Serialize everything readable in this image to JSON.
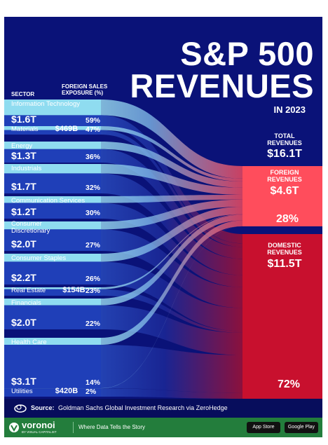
{
  "title_line1": "S&P 500",
  "title_line2": "REVENUES",
  "subtitle": "IN 2023",
  "header_sector": "SECTOR",
  "header_foreign_line1": "FOREIGN SALES",
  "header_foreign_line2": "EXPOSURE (%)",
  "total_label_line1": "TOTAL",
  "total_label_line2": "REVENUES",
  "total_value": "$16.1T",
  "foreign_label_line1": "FOREIGN",
  "foreign_label_line2": "REVENUES",
  "foreign_value": "$4.6T",
  "foreign_pct": "28%",
  "domestic_label_line1": "DOMESTIC",
  "domestic_label_line2": "REVENUES",
  "domestic_value": "$11.5T",
  "domestic_pct": "72%",
  "source_label": "Source:",
  "source_text": "Goldman Sachs Global Investment Research via ZeroHedge",
  "brand_name": "voronoi",
  "brand_sub": "BY VISUAL CAPITALIST",
  "tagline": "Where Data Tells the Story",
  "app_store": "App Store",
  "google_play": "Google Play",
  "colors": {
    "background": "#0a1278",
    "foreign": "#ff4d5c",
    "domestic": "#c8102e",
    "footer": "#237d3c"
  },
  "chart_data": {
    "type": "sankey",
    "title": "S&P 500 Revenues in 2023",
    "units": "USD trillions",
    "sectors": [
      {
        "name": "Information Technology",
        "revenue_label": "$1.6T",
        "revenue": 1.6,
        "foreign_pct_label": "59%",
        "foreign_pct": 59
      },
      {
        "name": "Materials",
        "revenue_label": "$469B",
        "revenue": 0.469,
        "foreign_pct_label": "47%",
        "foreign_pct": 47
      },
      {
        "name": "Energy",
        "revenue_label": "$1.3T",
        "revenue": 1.3,
        "foreign_pct_label": "36%",
        "foreign_pct": 36
      },
      {
        "name": "Industrials",
        "revenue_label": "$1.7T",
        "revenue": 1.7,
        "foreign_pct_label": "32%",
        "foreign_pct": 32
      },
      {
        "name": "Communication Services",
        "revenue_label": "$1.2T",
        "revenue": 1.2,
        "foreign_pct_label": "30%",
        "foreign_pct": 30
      },
      {
        "name": "Consumer Discretionary",
        "revenue_label": "$2.0T",
        "revenue": 2.0,
        "foreign_pct_label": "27%",
        "foreign_pct": 27
      },
      {
        "name": "Consumer Staples",
        "revenue_label": "$2.2T",
        "revenue": 2.2,
        "foreign_pct_label": "26%",
        "foreign_pct": 26
      },
      {
        "name": "Real Estate",
        "revenue_label": "$154B",
        "revenue": 0.154,
        "foreign_pct_label": "23%",
        "foreign_pct": 23
      },
      {
        "name": "Financials",
        "revenue_label": "$2.0T",
        "revenue": 2.0,
        "foreign_pct_label": "22%",
        "foreign_pct": 22
      },
      {
        "name": "Health Care",
        "revenue_label": "$3.1T",
        "revenue": 3.1,
        "foreign_pct_label": "14%",
        "foreign_pct": 14
      },
      {
        "name": "Utilities",
        "revenue_label": "$420B",
        "revenue": 0.42,
        "foreign_pct_label": "2%",
        "foreign_pct": 2
      }
    ],
    "totals": {
      "total": 16.1,
      "foreign": 4.6,
      "domestic": 11.5,
      "foreign_pct": 28,
      "domestic_pct": 72
    }
  }
}
